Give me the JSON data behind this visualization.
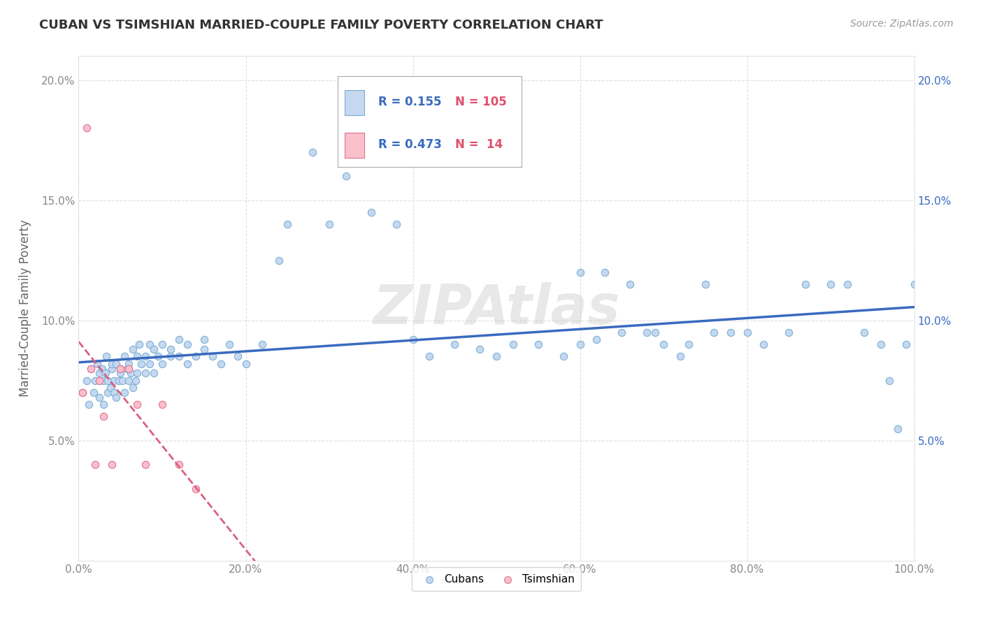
{
  "title": "CUBAN VS TSIMSHIAN MARRIED-COUPLE FAMILY POVERTY CORRELATION CHART",
  "source": "Source: ZipAtlas.com",
  "ylabel": "Married-Couple Family Poverty",
  "xlim": [
    0,
    1.0
  ],
  "ylim": [
    0,
    0.21
  ],
  "xticks": [
    0.0,
    0.2,
    0.4,
    0.6,
    0.8,
    1.0
  ],
  "xtick_labels": [
    "0.0%",
    "20.0%",
    "40.0%",
    "60.0%",
    "80.0%",
    "100.0%"
  ],
  "yticks": [
    0.0,
    0.05,
    0.1,
    0.15,
    0.2
  ],
  "ytick_labels_left": [
    "",
    "5.0%",
    "10.0%",
    "15.0%",
    "20.0%"
  ],
  "ytick_labels_right": [
    "",
    "5.0%",
    "10.0%",
    "15.0%",
    "20.0%"
  ],
  "cubans_R": 0.155,
  "cubans_N": 105,
  "tsimshian_R": 0.473,
  "tsimshian_N": 14,
  "cuban_color": "#c5d8f0",
  "cuban_edge_color": "#7bafd4",
  "tsimshian_color": "#f9c0cc",
  "tsimshian_edge_color": "#e07090",
  "trendline_cuban_color": "#3a6abf",
  "trendline_tsimshian_color": "#d96080",
  "background_color": "#ffffff",
  "grid_color": "#dddddd",
  "watermark_text": "ZIPAtlas",
  "legend_label_1": "Cubans",
  "legend_label_2": "Tsimshian",
  "cubans_x": [
    0.005,
    0.01,
    0.012,
    0.015,
    0.018,
    0.02,
    0.022,
    0.025,
    0.025,
    0.028,
    0.03,
    0.03,
    0.032,
    0.033,
    0.035,
    0.035,
    0.038,
    0.04,
    0.04,
    0.042,
    0.042,
    0.045,
    0.045,
    0.048,
    0.05,
    0.05,
    0.052,
    0.055,
    0.055,
    0.058,
    0.06,
    0.06,
    0.062,
    0.065,
    0.065,
    0.068,
    0.07,
    0.07,
    0.072,
    0.075,
    0.08,
    0.08,
    0.085,
    0.085,
    0.09,
    0.09,
    0.095,
    0.1,
    0.1,
    0.11,
    0.11,
    0.12,
    0.12,
    0.13,
    0.13,
    0.14,
    0.15,
    0.15,
    0.16,
    0.17,
    0.18,
    0.19,
    0.2,
    0.22,
    0.24,
    0.25,
    0.28,
    0.3,
    0.32,
    0.35,
    0.38,
    0.4,
    0.42,
    0.45,
    0.48,
    0.5,
    0.52,
    0.55,
    0.58,
    0.6,
    0.62,
    0.65,
    0.68,
    0.7,
    0.72,
    0.75,
    0.78,
    0.8,
    0.82,
    0.85,
    0.87,
    0.9,
    0.92,
    0.94,
    0.96,
    0.97,
    0.98,
    0.99,
    1.0,
    0.6,
    0.63,
    0.66,
    0.69,
    0.73,
    0.76
  ],
  "cubans_y": [
    0.07,
    0.075,
    0.065,
    0.08,
    0.07,
    0.075,
    0.082,
    0.068,
    0.078,
    0.08,
    0.065,
    0.075,
    0.078,
    0.085,
    0.07,
    0.075,
    0.072,
    0.08,
    0.082,
    0.07,
    0.075,
    0.068,
    0.082,
    0.075,
    0.08,
    0.078,
    0.075,
    0.085,
    0.07,
    0.08,
    0.075,
    0.082,
    0.078,
    0.072,
    0.088,
    0.075,
    0.085,
    0.078,
    0.09,
    0.082,
    0.085,
    0.078,
    0.09,
    0.082,
    0.088,
    0.078,
    0.085,
    0.082,
    0.09,
    0.085,
    0.088,
    0.092,
    0.085,
    0.082,
    0.09,
    0.085,
    0.092,
    0.088,
    0.085,
    0.082,
    0.09,
    0.085,
    0.082,
    0.09,
    0.125,
    0.14,
    0.17,
    0.14,
    0.16,
    0.145,
    0.14,
    0.092,
    0.085,
    0.09,
    0.088,
    0.085,
    0.09,
    0.09,
    0.085,
    0.09,
    0.092,
    0.095,
    0.095,
    0.09,
    0.085,
    0.115,
    0.095,
    0.095,
    0.09,
    0.095,
    0.115,
    0.115,
    0.115,
    0.095,
    0.09,
    0.075,
    0.055,
    0.09,
    0.115,
    0.12,
    0.12,
    0.115,
    0.095,
    0.09,
    0.095
  ],
  "tsimshian_x": [
    0.005,
    0.01,
    0.015,
    0.02,
    0.025,
    0.03,
    0.04,
    0.05,
    0.06,
    0.07,
    0.08,
    0.1,
    0.12,
    0.14
  ],
  "tsimshian_y": [
    0.07,
    0.18,
    0.08,
    0.04,
    0.075,
    0.06,
    0.04,
    0.08,
    0.08,
    0.065,
    0.04,
    0.065,
    0.04,
    0.03
  ]
}
